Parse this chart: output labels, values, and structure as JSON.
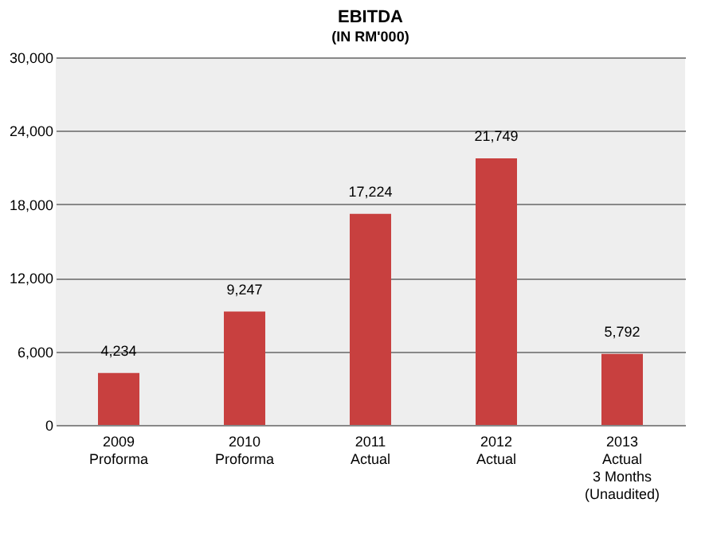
{
  "chart_data": {
    "type": "bar",
    "title": "EBITDA",
    "subtitle": "(IN RM'000)",
    "categories": [
      "2009\nProforma",
      "2010\nProforma",
      "2011\nActual",
      "2012\nActual",
      "2013\nActual\n3 Months\n(Unaudited)"
    ],
    "values": [
      4234,
      9247,
      17224,
      21749,
      5792
    ],
    "value_labels": [
      "4,234",
      "9,247",
      "17,224",
      "21,749",
      "5,792"
    ],
    "color": "#c8403f",
    "ylim": [
      0,
      30000
    ],
    "yticks": [
      0,
      {
        "value": 6000,
        "label": "6,000"
      },
      {
        "value": 12000,
        "label": "12,000"
      },
      {
        "value": 18000,
        "label": "18,000"
      },
      {
        "value": 24000,
        "label": "24,000"
      },
      {
        "value": 30000,
        "label": "30,000"
      }
    ],
    "grid": "y"
  }
}
